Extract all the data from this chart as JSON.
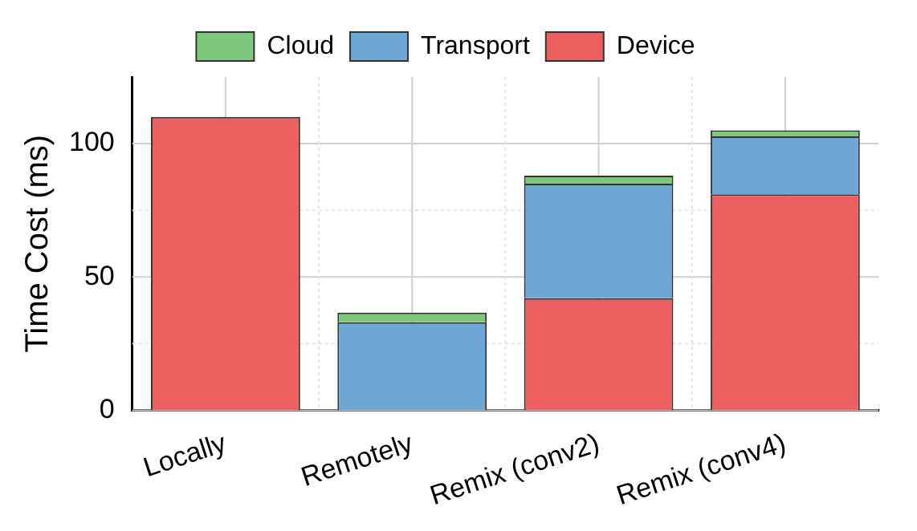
{
  "chart_data": {
    "type": "bar",
    "stacked": true,
    "ylabel": "Time Cost (ms)",
    "categories": [
      "Locally",
      "Remotely",
      "Remix (conv2)",
      "Remix (conv4)"
    ],
    "series": [
      {
        "name": "Device",
        "color": "#eb5f5f",
        "values": [
          110,
          0,
          42,
          81
        ]
      },
      {
        "name": "Transport",
        "color": "#6ea6d4",
        "values": [
          0,
          33,
          43,
          21.7
        ]
      },
      {
        "name": "Cloud",
        "color": "#7ec87e",
        "values": [
          0,
          3.6,
          3,
          2.3
        ]
      }
    ],
    "ylim": [
      0,
      125
    ],
    "yticks": [
      0,
      {
        "value": 25,
        "label": null
      },
      50,
      {
        "value": 75,
        "label": null
      },
      100
    ],
    "grid": true,
    "legend": "top"
  }
}
